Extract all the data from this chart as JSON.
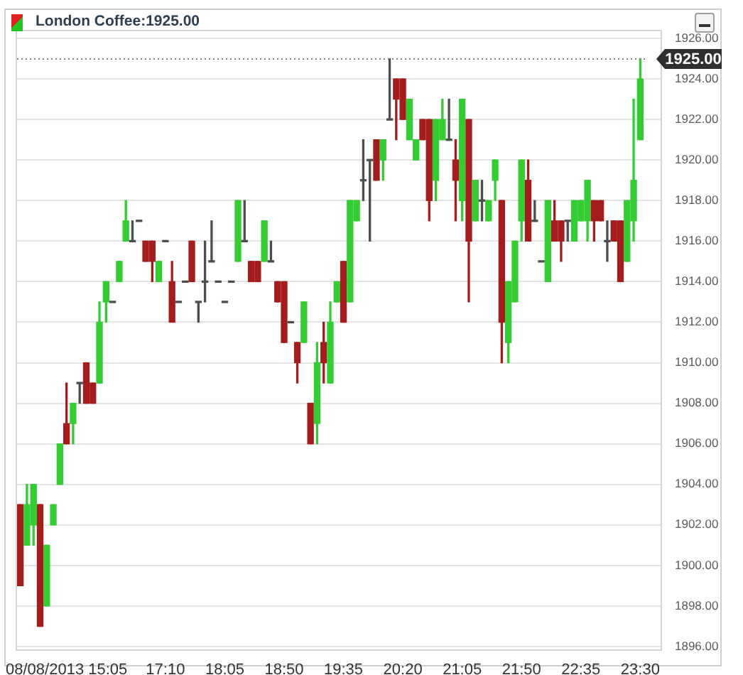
{
  "chart_data": {
    "type": "candlestick",
    "title": "London Coffee:1925.00",
    "categories": [
      null,
      null,
      null,
      null,
      null,
      null,
      null,
      "08/08/2013 15:05",
      null,
      null,
      null,
      null,
      null,
      null,
      null,
      null,
      null,
      null,
      null,
      null,
      null,
      null,
      "17:10",
      null,
      null,
      null,
      null,
      null,
      null,
      null,
      null,
      "18:05",
      null,
      null,
      null,
      null,
      null,
      null,
      null,
      null,
      "18:50",
      null,
      null,
      null,
      null,
      null,
      null,
      null,
      null,
      "19:35",
      null,
      null,
      null,
      null,
      null,
      null,
      null,
      null,
      "20:20",
      null,
      null,
      null,
      null,
      null,
      null,
      null,
      null,
      "21:05",
      null,
      null,
      null,
      null,
      null,
      null,
      null,
      null,
      "21:50",
      null,
      null,
      null,
      null,
      null,
      null,
      null,
      null,
      "22:35",
      null,
      null,
      null,
      null,
      null,
      null,
      null,
      null,
      "23:30"
    ],
    "ohlc": [
      [
        1903,
        1903,
        1899,
        1899
      ],
      [
        1901,
        1904,
        1901,
        1903
      ],
      [
        1902,
        1904,
        1901,
        1904
      ],
      [
        1903,
        1903,
        1897,
        1897
      ],
      [
        1898,
        1901,
        1898,
        1901
      ],
      [
        1902,
        1903,
        1902,
        1903
      ],
      [
        1904,
        1906,
        1904,
        1906
      ],
      [
        1907,
        1909,
        1906,
        1906
      ],
      [
        1907,
        1908,
        1906,
        1908
      ],
      [
        1909,
        1909,
        1908,
        1909
      ],
      [
        1910,
        1910,
        1908,
        1908
      ],
      [
        1909,
        1909,
        1908,
        1908
      ],
      [
        1909,
        1913,
        1909,
        1912
      ],
      [
        1913,
        1914,
        1912,
        1914
      ],
      [
        1913,
        1913,
        1913,
        1913
      ],
      [
        1914,
        1915,
        1914,
        1915
      ],
      [
        1916,
        1918,
        1916,
        1917
      ],
      [
        1916,
        1917,
        1916,
        1916
      ],
      [
        1917,
        1917,
        1917,
        1917
      ],
      [
        1916,
        1916,
        1915,
        1915
      ],
      [
        1916,
        1916,
        1914,
        1915
      ],
      [
        1914,
        1915,
        1914,
        1915
      ],
      [
        1916,
        1916,
        1916,
        1916
      ],
      [
        1914,
        1915,
        1912,
        1912
      ],
      [
        1913,
        1913,
        1913,
        1913
      ],
      [
        1914,
        1914,
        1914,
        1914
      ],
      [
        1916,
        1916,
        1914,
        1914
      ],
      [
        1913,
        1913,
        1912,
        1913
      ],
      [
        1914,
        1916,
        1913,
        1914
      ],
      [
        1915,
        1917,
        1915,
        1915
      ],
      [
        1914,
        1914,
        1914,
        1914
      ],
      [
        1913,
        1913,
        1913,
        1913
      ],
      [
        1914,
        1914,
        1914,
        1914
      ],
      [
        1915,
        1918,
        1915,
        1918
      ],
      [
        1916,
        1918,
        1916,
        1916
      ],
      [
        1915,
        1915,
        1914,
        1914
      ],
      [
        1915,
        1915,
        1914,
        1914
      ],
      [
        1915,
        1917,
        1915,
        1917
      ],
      [
        1915,
        1916,
        1915,
        1915
      ],
      [
        1914,
        1914,
        1913,
        1913
      ],
      [
        1914,
        1914,
        1911,
        1911
      ],
      [
        1912,
        1912,
        1912,
        1912
      ],
      [
        1911,
        1911,
        1909,
        1910
      ],
      [
        1911,
        1913,
        1911,
        1913
      ],
      [
        1908,
        1908,
        1906,
        1906
      ],
      [
        1907,
        1911,
        1906,
        1910
      ],
      [
        1911,
        1912,
        1909,
        1910
      ],
      [
        1909,
        1913,
        1909,
        1912
      ],
      [
        1913,
        1914,
        1913,
        1914
      ],
      [
        1915,
        1915,
        1912,
        1912
      ],
      [
        1913,
        1918,
        1913,
        1918
      ],
      [
        1917,
        1918,
        1917,
        1918
      ],
      [
        1919,
        1921,
        1918,
        1919
      ],
      [
        1920,
        1920,
        1916,
        1920
      ],
      [
        1921,
        1921,
        1919,
        1919
      ],
      [
        1920,
        1921,
        1919,
        1921
      ],
      [
        1922,
        1925,
        1922,
        1922
      ],
      [
        1924,
        1924,
        1921,
        1923
      ],
      [
        1924,
        1924,
        1922,
        1922
      ],
      [
        1921,
        1923,
        1921,
        1923
      ],
      [
        1920,
        1921,
        1920,
        1921
      ],
      [
        1922,
        1922,
        1921,
        1921
      ],
      [
        1922,
        1922,
        1917,
        1918
      ],
      [
        1919,
        1922,
        1918,
        1922
      ],
      [
        1921,
        1923,
        1921,
        1922
      ],
      [
        1921,
        1923,
        1921,
        1921
      ],
      [
        1920,
        1921,
        1917,
        1919
      ],
      [
        1918,
        1923,
        1917,
        1923
      ],
      [
        1922,
        1922,
        1913,
        1916
      ],
      [
        1917,
        1919,
        1917,
        1919
      ],
      [
        1918,
        1919,
        1917,
        1918
      ],
      [
        1917,
        1918,
        1917,
        1918
      ],
      [
        1919,
        1920,
        1918,
        1920
      ],
      [
        1918,
        1918,
        1910,
        1912
      ],
      [
        1911,
        1914,
        1910,
        1914
      ],
      [
        1913,
        1916,
        1913,
        1916
      ],
      [
        1917,
        1920,
        1916,
        1920
      ],
      [
        1919,
        1920,
        1916,
        1916
      ],
      [
        1917,
        1918,
        1917,
        1917
      ],
      [
        1915,
        1915,
        1915,
        1915
      ],
      [
        1914,
        1918,
        1914,
        1918
      ],
      [
        1917,
        1918,
        1916,
        1916
      ],
      [
        1917,
        1917,
        1915,
        1916
      ],
      [
        1917,
        1917,
        1916,
        1917
      ],
      [
        1916,
        1918,
        1916,
        1918
      ],
      [
        1917,
        1918,
        1917,
        1918
      ],
      [
        1917,
        1919,
        1916,
        1919
      ],
      [
        1918,
        1918,
        1916,
        1917
      ],
      [
        1918,
        1918,
        1917,
        1917
      ],
      [
        1916,
        1917,
        1915,
        1916
      ],
      [
        1917,
        1917,
        1916,
        1916
      ],
      [
        1917,
        1917,
        1914,
        1914
      ],
      [
        1915,
        1918,
        1915,
        1918
      ],
      [
        1917,
        1923,
        1916,
        1919
      ],
      [
        1921,
        1925,
        1921,
        1924
      ]
    ],
    "colors": [
      "#a51c1c",
      "#33cc33",
      "#33cc33",
      "#a51c1c",
      "#33cc33",
      "#33cc33",
      "#33cc33",
      "#a51c1c",
      "#33cc33",
      "#4d4d4d",
      "#a51c1c",
      "#a51c1c",
      "#33cc33",
      "#33cc33",
      "#4d4d4d",
      "#33cc33",
      "#33cc33",
      "#4d4d4d",
      "#4d4d4d",
      "#a51c1c",
      "#a51c1c",
      "#33cc33",
      "#4d4d4d",
      "#a51c1c",
      "#4d4d4d",
      "#4d4d4d",
      "#a51c1c",
      "#4d4d4d",
      "#4d4d4d",
      "#4d4d4d",
      "#4d4d4d",
      "#4d4d4d",
      "#4d4d4d",
      "#33cc33",
      "#4d4d4d",
      "#a51c1c",
      "#a51c1c",
      "#33cc33",
      "#4d4d4d",
      "#a51c1c",
      "#a51c1c",
      "#4d4d4d",
      "#a51c1c",
      "#33cc33",
      "#a51c1c",
      "#33cc33",
      "#a51c1c",
      "#33cc33",
      "#33cc33",
      "#a51c1c",
      "#33cc33",
      "#33cc33",
      "#4d4d4d",
      "#4d4d4d",
      "#a51c1c",
      "#33cc33",
      "#4d4d4d",
      "#a51c1c",
      "#a51c1c",
      "#33cc33",
      "#33cc33",
      "#a51c1c",
      "#a51c1c",
      "#33cc33",
      "#33cc33",
      "#4d4d4d",
      "#a51c1c",
      "#33cc33",
      "#a51c1c",
      "#33cc33",
      "#4d4d4d",
      "#33cc33",
      "#33cc33",
      "#a51c1c",
      "#33cc33",
      "#33cc33",
      "#33cc33",
      "#a51c1c",
      "#4d4d4d",
      "#4d4d4d",
      "#33cc33",
      "#a51c1c",
      "#a51c1c",
      "#4d4d4d",
      "#33cc33",
      "#33cc33",
      "#33cc33",
      "#a51c1c",
      "#a51c1c",
      "#4d4d4d",
      "#a51c1c",
      "#a51c1c",
      "#33cc33",
      "#33cc33",
      "#33cc33"
    ],
    "ylim": [
      1896,
      1926
    ],
    "yticks": [
      {
        "value": 1896,
        "label": "1896.00"
      },
      {
        "value": 1898,
        "label": "1898.00"
      },
      {
        "value": 1900,
        "label": "1900.00"
      },
      {
        "value": 1902,
        "label": "1902.00"
      },
      {
        "value": 1904,
        "label": "1904.00"
      },
      {
        "value": 1906,
        "label": "1906.00"
      },
      {
        "value": 1908,
        "label": "1908.00"
      },
      {
        "value": 1910,
        "label": "1910.00"
      },
      {
        "value": 1912,
        "label": "1912.00"
      },
      {
        "value": 1914,
        "label": "1914.00"
      },
      {
        "value": 1916,
        "label": "1916.00"
      },
      {
        "value": 1918,
        "label": "1918.00"
      },
      {
        "value": 1920,
        "label": "1920.00"
      },
      {
        "value": 1922,
        "label": "1922.00"
      },
      {
        "value": 1924,
        "label": "1924.00"
      },
      {
        "value": 1926,
        "label": "1926.00"
      }
    ],
    "grid": "y",
    "ref_lines": [
      {
        "axis": "y",
        "value": 1925,
        "label": "1925.00",
        "color": "#808080",
        "line_style": "dotted"
      }
    ]
  }
}
